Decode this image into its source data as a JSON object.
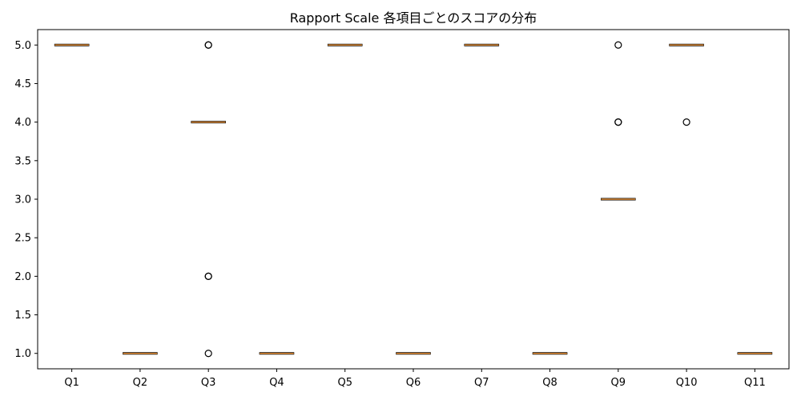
{
  "chart_data": {
    "type": "box",
    "title": "Rapport Scale 各項目ごとのスコアの分布",
    "xlabel": "",
    "ylabel": "",
    "ylim": [
      0.8,
      5.2
    ],
    "yticks": [
      "1.0",
      "1.5",
      "2.0",
      "2.5",
      "3.0",
      "3.5",
      "4.0",
      "4.5",
      "5.0"
    ],
    "categories": [
      "Q1",
      "Q2",
      "Q3",
      "Q4",
      "Q5",
      "Q6",
      "Q7",
      "Q8",
      "Q9",
      "Q10",
      "Q11"
    ],
    "boxes": [
      {
        "label": "Q1",
        "median": 5.0,
        "q1": 5.0,
        "q3": 5.0,
        "whisker_low": 5.0,
        "whisker_high": 5.0,
        "outliers": []
      },
      {
        "label": "Q2",
        "median": 1.0,
        "q1": 1.0,
        "q3": 1.0,
        "whisker_low": 1.0,
        "whisker_high": 1.0,
        "outliers": []
      },
      {
        "label": "Q3",
        "median": 4.0,
        "q1": 4.0,
        "q3": 4.0,
        "whisker_low": 4.0,
        "whisker_high": 4.0,
        "outliers": [
          5.0,
          5.0,
          2.0,
          2.0,
          1.0
        ]
      },
      {
        "label": "Q4",
        "median": 1.0,
        "q1": 1.0,
        "q3": 1.0,
        "whisker_low": 1.0,
        "whisker_high": 1.0,
        "outliers": []
      },
      {
        "label": "Q5",
        "median": 5.0,
        "q1": 5.0,
        "q3": 5.0,
        "whisker_low": 5.0,
        "whisker_high": 5.0,
        "outliers": []
      },
      {
        "label": "Q6",
        "median": 1.0,
        "q1": 1.0,
        "q3": 1.0,
        "whisker_low": 1.0,
        "whisker_high": 1.0,
        "outliers": []
      },
      {
        "label": "Q7",
        "median": 5.0,
        "q1": 5.0,
        "q3": 5.0,
        "whisker_low": 5.0,
        "whisker_high": 5.0,
        "outliers": []
      },
      {
        "label": "Q8",
        "median": 1.0,
        "q1": 1.0,
        "q3": 1.0,
        "whisker_low": 1.0,
        "whisker_high": 1.0,
        "outliers": []
      },
      {
        "label": "Q9",
        "median": 3.0,
        "q1": 3.0,
        "q3": 3.0,
        "whisker_low": 3.0,
        "whisker_high": 3.0,
        "outliers": [
          5.0,
          4.0,
          4.0
        ]
      },
      {
        "label": "Q10",
        "median": 5.0,
        "q1": 5.0,
        "q3": 5.0,
        "whisker_low": 5.0,
        "whisker_high": 5.0,
        "outliers": [
          4.0
        ]
      },
      {
        "label": "Q11",
        "median": 1.0,
        "q1": 1.0,
        "q3": 1.0,
        "whisker_low": 1.0,
        "whisker_high": 1.0,
        "outliers": []
      }
    ],
    "grid": false,
    "colors": {
      "median": "#e8923a",
      "box": "#000000",
      "outlier": "#000000",
      "axis": "#000000"
    }
  }
}
